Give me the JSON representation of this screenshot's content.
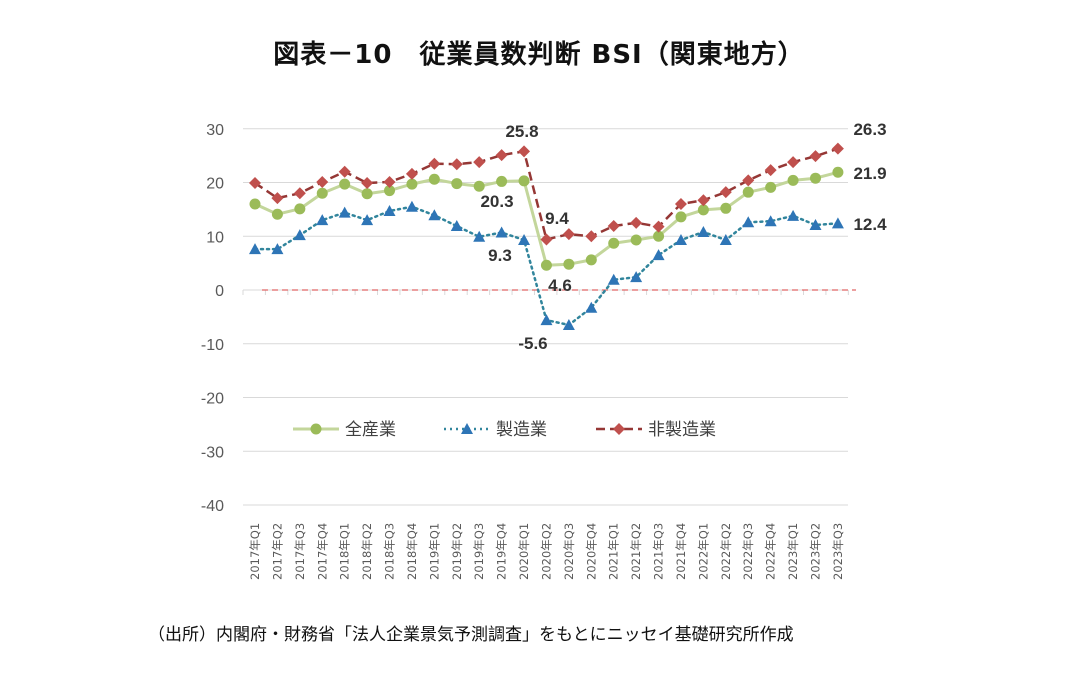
{
  "title": "図表－10　従業員数判断 BSI（関東地方）",
  "source": "（出所）内閣府・財務省「法人企業景気予測調査」をもとにニッセイ基礎研究所作成",
  "chart_data": {
    "type": "line",
    "title": "図表－10　従業員数判断 BSI（関東地方）",
    "xlabel": "",
    "ylabel": "",
    "ylim": [
      -40,
      30
    ],
    "yticks": [
      30,
      20,
      10,
      0,
      -10,
      -20,
      -30,
      -40
    ],
    "grid": true,
    "legend_position": "center-left (inside plot, below zero line)",
    "categories": [
      "2017年Q1",
      "2017年Q2",
      "2017年Q3",
      "2017年Q4",
      "2018年Q1",
      "2018年Q2",
      "2018年Q3",
      "2018年Q4",
      "2019年Q1",
      "2019年Q2",
      "2019年Q3",
      "2019年Q4",
      "2020年Q1",
      "2020年Q2",
      "2020年Q3",
      "2020年Q4",
      "2021年Q1",
      "2021年Q2",
      "2021年Q3",
      "2021年Q4",
      "2022年Q1",
      "2022年Q2",
      "2022年Q3",
      "2022年Q4",
      "2023年Q1",
      "2023年Q2",
      "2023年Q3"
    ],
    "series": [
      {
        "name": "全産業",
        "color": "#9bbb59",
        "line_color": "#c3d69b",
        "style": "solid",
        "marker": "circle",
        "values": [
          16.0,
          14.1,
          15.1,
          18.0,
          19.7,
          17.9,
          18.5,
          19.7,
          20.6,
          19.8,
          19.3,
          20.2,
          20.3,
          4.6,
          4.8,
          5.6,
          8.7,
          9.3,
          10.0,
          13.6,
          14.9,
          15.2,
          18.2,
          19.1,
          20.4,
          20.8,
          21.9
        ]
      },
      {
        "name": "製造業",
        "color": "#2e75b6",
        "line_color": "#31859c",
        "style": "dotted",
        "marker": "triangle",
        "values": [
          7.6,
          7.6,
          10.2,
          13.0,
          14.4,
          13.0,
          14.7,
          15.5,
          13.9,
          11.9,
          9.9,
          10.7,
          9.3,
          -5.6,
          -6.5,
          -3.3,
          1.9,
          2.4,
          6.5,
          9.3,
          10.8,
          9.3,
          12.6,
          12.8,
          13.8,
          12.1,
          12.4
        ]
      },
      {
        "name": "非製造業",
        "color": "#c0504d",
        "line_color": "#953735",
        "style": "dashed",
        "marker": "diamond",
        "values": [
          19.9,
          17.1,
          18.0,
          20.1,
          22.0,
          19.9,
          20.1,
          21.6,
          23.5,
          23.4,
          23.8,
          25.1,
          25.8,
          9.4,
          10.4,
          10.0,
          11.9,
          12.5,
          11.8,
          16.0,
          16.7,
          18.2,
          20.4,
          22.3,
          23.8,
          24.9,
          26.3
        ]
      }
    ],
    "reference_line": {
      "value": 0,
      "color": "#e06666",
      "style": "dashed"
    },
    "annotations": [
      {
        "text": "25.8",
        "series": "非製造業",
        "category": "2020年Q1"
      },
      {
        "text": "20.3",
        "series": "全産業",
        "category": "2020年Q1"
      },
      {
        "text": "9.3",
        "series": "製造業",
        "category": "2020年Q1"
      },
      {
        "text": "9.4",
        "series": "非製造業",
        "category": "2020年Q2"
      },
      {
        "text": "4.6",
        "series": "全産業",
        "category": "2020年Q2"
      },
      {
        "text": "-5.6",
        "series": "製造業",
        "category": "2020年Q2"
      },
      {
        "text": "26.3",
        "series": "非製造業",
        "category": "2023年Q3"
      },
      {
        "text": "21.9",
        "series": "全産業",
        "category": "2023年Q3"
      },
      {
        "text": "12.4",
        "series": "製造業",
        "category": "2023年Q3"
      }
    ]
  }
}
